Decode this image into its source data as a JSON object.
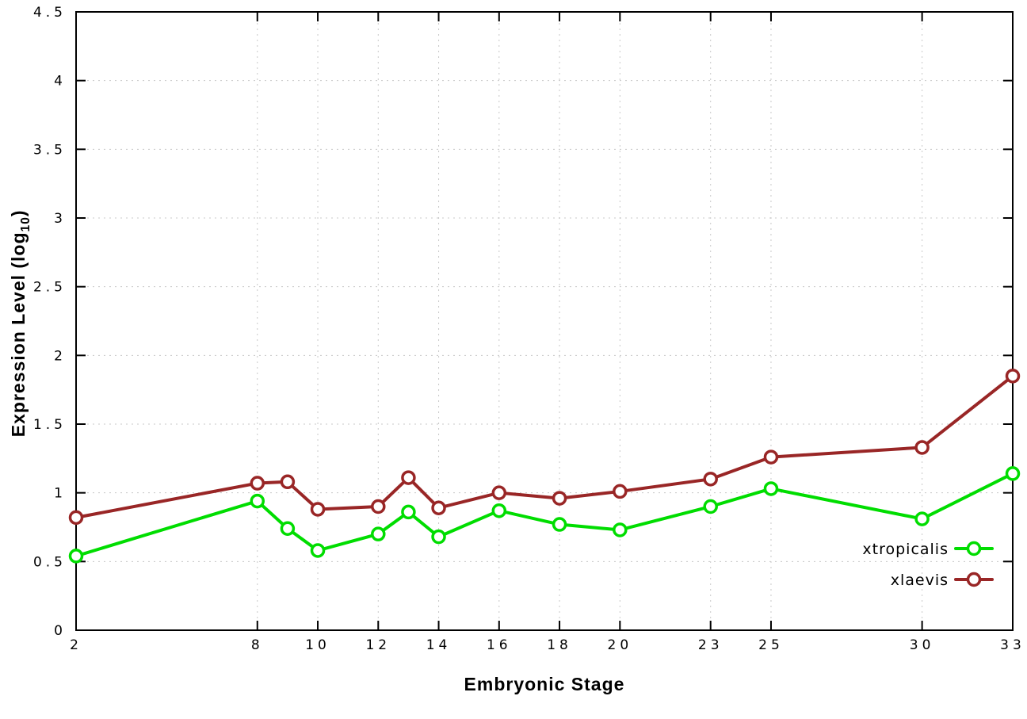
{
  "page": {
    "background": "#ffffff"
  },
  "chart_data": {
    "type": "line",
    "title": "",
    "xlabel": "Embryonic Stage",
    "ylabel": "Expression Level (log10)",
    "ylabel_prefix": "Expression Level (log",
    "ylabel_sub": "10",
    "ylabel_suffix": ")",
    "xlim": [
      2,
      33
    ],
    "ylim": [
      0,
      4.5
    ],
    "x_ticks": [
      2,
      8,
      10,
      12,
      14,
      16,
      18,
      20,
      23,
      25,
      30,
      33
    ],
    "y_ticks": [
      0,
      0.5,
      1,
      1.5,
      2,
      2.5,
      3,
      3.5,
      4,
      4.5
    ],
    "grid": true,
    "grid_color": "#c8c8c8",
    "legend_position": "bottom-right",
    "x": [
      2,
      8,
      9,
      10,
      12,
      13,
      14,
      16,
      18,
      20,
      23,
      25,
      30,
      33
    ],
    "series": [
      {
        "name": "xtropicalis",
        "color": "#00dd00",
        "marker": "open-circle",
        "values": [
          0.54,
          0.94,
          0.74,
          0.58,
          0.7,
          0.86,
          0.68,
          0.87,
          0.77,
          0.73,
          0.9,
          1.03,
          0.81,
          1.14
        ]
      },
      {
        "name": "xlaevis",
        "color": "#992626",
        "marker": "open-circle",
        "values": [
          0.82,
          1.07,
          1.08,
          0.88,
          0.9,
          1.11,
          0.89,
          1.0,
          0.96,
          1.01,
          1.1,
          1.26,
          1.33,
          1.85
        ]
      }
    ]
  }
}
